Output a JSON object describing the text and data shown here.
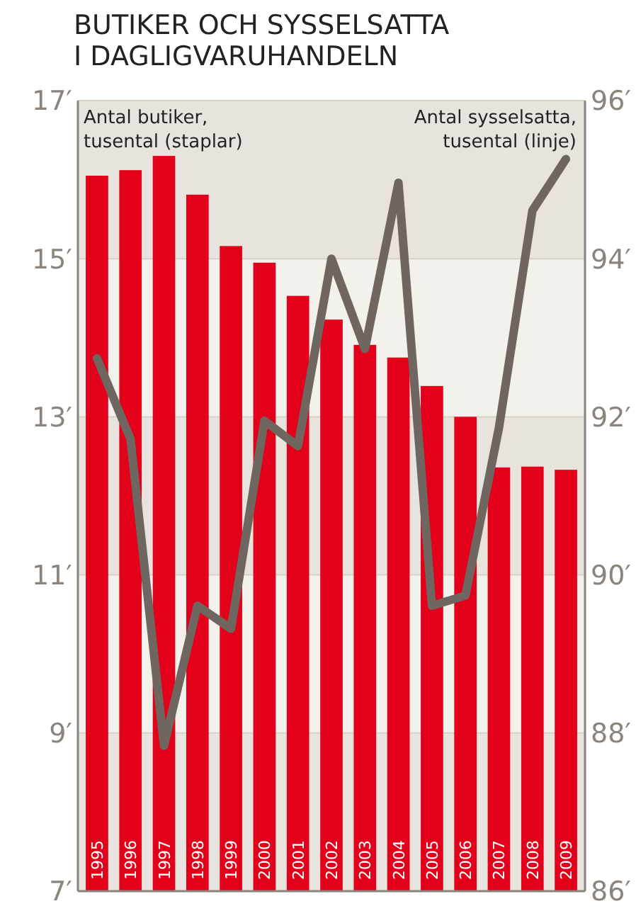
{
  "chart_data": {
    "type": "bar",
    "title": "BUTIKER OCH SYSSELSATTA\nI DAGLIGVARUHANDELN",
    "categories": [
      "1995",
      "1996",
      "1997",
      "1998",
      "1999",
      "2000",
      "2001",
      "2002",
      "2003",
      "2004",
      "2005",
      "2006",
      "2007",
      "2008",
      "2009"
    ],
    "series": [
      {
        "name": "Antal butiker, tusental (staplar)",
        "color": "#e2001a",
        "values": [
          16.05,
          16.12,
          16.3,
          15.81,
          15.16,
          14.95,
          14.53,
          14.23,
          13.91,
          13.75,
          13.39,
          13.0,
          12.36,
          12.37,
          12.33
        ]
      },
      {
        "name": "Antal sysselsatta, tusental (linje)",
        "type": "line",
        "axis": "y2",
        "color": "#6e665f",
        "values": [
          92.74,
          91.72,
          87.84,
          89.61,
          89.32,
          91.95,
          91.63,
          94.0,
          92.86,
          94.96,
          89.61,
          89.74,
          91.86,
          94.61,
          95.26
        ]
      }
    ],
    "ylim": [
      7,
      17
    ],
    "yticks": [
      {
        "value": 7,
        "label": "7′"
      },
      {
        "value": 9,
        "label": "9′"
      },
      {
        "value": 11,
        "label": "11′"
      },
      {
        "value": 13,
        "label": "13′"
      },
      {
        "value": 15,
        "label": "15′"
      },
      {
        "value": 17,
        "label": "17′"
      }
    ],
    "y2lim": [
      86,
      96
    ],
    "y2ticks": [
      {
        "value": 86,
        "label": "86′"
      },
      {
        "value": 88,
        "label": "88′"
      },
      {
        "value": 90,
        "label": "90′"
      },
      {
        "value": 92,
        "label": "92′"
      },
      {
        "value": 94,
        "label": "94′"
      },
      {
        "value": 96,
        "label": "96′"
      }
    ],
    "grid": "y",
    "legend": "top",
    "marker": "none",
    "line_style": "solid"
  }
}
